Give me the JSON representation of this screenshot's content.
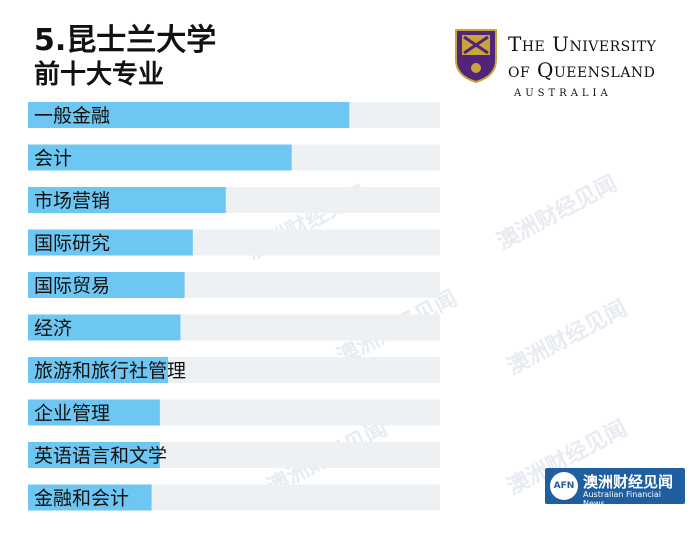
{
  "header": {
    "title": "5.昆士兰大学",
    "subtitle": "前十大专业"
  },
  "logo": {
    "line1": "The University",
    "line2": "of Queensland",
    "location": "AUSTRALIA"
  },
  "badge": {
    "mark": "AFN",
    "name_cn": "澳洲财经见闻",
    "name_en": "Australian Financial News"
  },
  "watermark": "澳洲财经见闻",
  "colors": {
    "bar": "#6ec6f2",
    "track": "#eef1f4"
  },
  "chart_data": {
    "type": "bar",
    "orientation": "horizontal",
    "title": "5.昆士兰大学",
    "subtitle": "前十大专业",
    "categories": [
      "一般金融",
      "会计",
      "市场营销",
      "国际研究",
      "国际贸易",
      "经济",
      "旅游和旅行社管理",
      "企业管理",
      "英语语言和文学",
      "金融和会计"
    ],
    "values": [
      78,
      64,
      48,
      40,
      38,
      37,
      34,
      32,
      32,
      30
    ],
    "xlim": [
      0,
      100
    ],
    "grid": false,
    "legend": "none"
  }
}
